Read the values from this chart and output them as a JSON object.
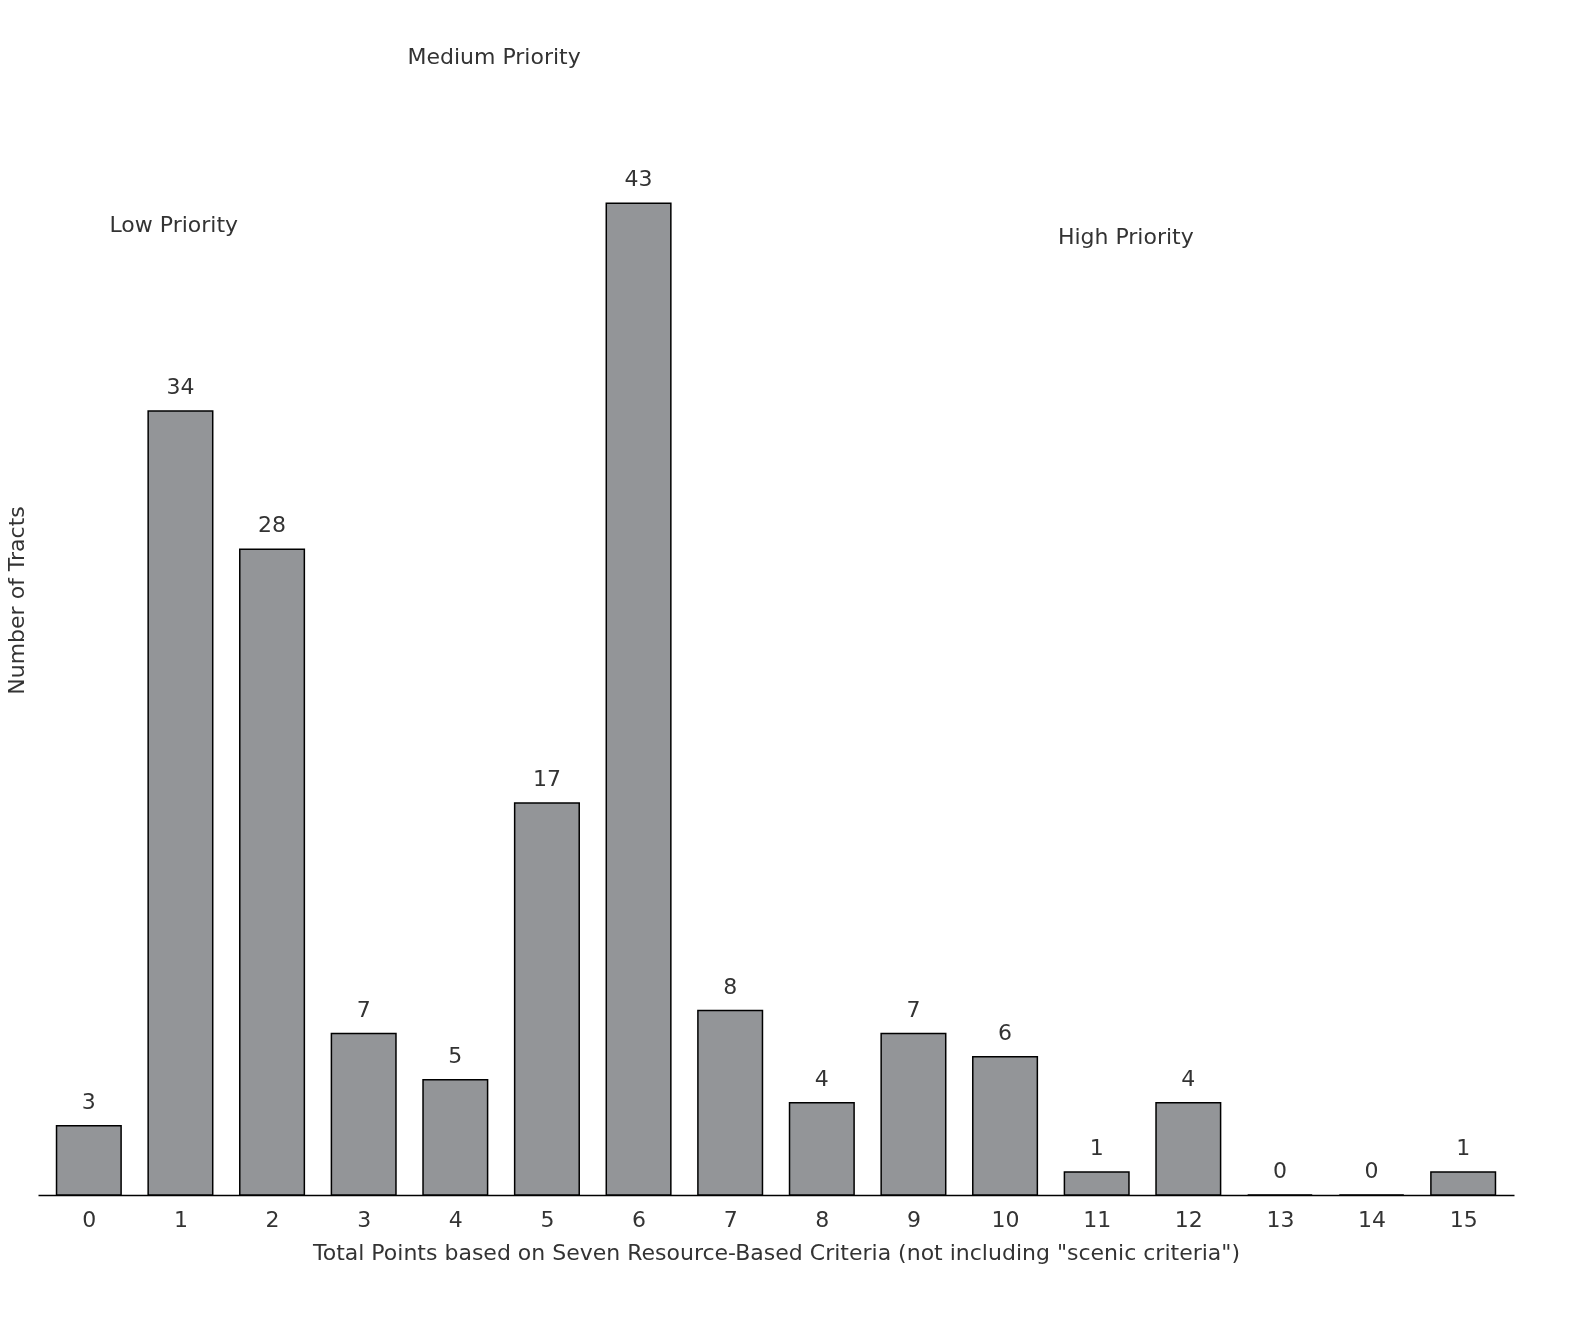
{
  "chart_data": {
    "type": "bar",
    "xlabel": "Total Points based on Seven Resource-Based Criteria (not including \"scenic criteria\")",
    "ylabel": "Number of Tracts",
    "x": [
      0,
      1,
      2,
      3,
      4,
      5,
      6,
      7,
      8,
      9,
      10,
      11,
      12,
      13,
      14,
      15
    ],
    "xlim": [
      -0.5,
      15.5
    ],
    "xticks": [
      0,
      1,
      2,
      3,
      4,
      5,
      6,
      7,
      8,
      9,
      10,
      11,
      12,
      13,
      14,
      15
    ],
    "values": [
      3,
      34,
      28,
      7,
      5,
      17,
      43,
      8,
      4,
      7,
      6,
      1,
      4,
      0,
      0,
      1
    ],
    "color": "#939598",
    "data_labels": true,
    "annotations": [
      "Low Priority",
      "Medium Priority",
      "High Priority"
    ],
    "grid": false
  }
}
